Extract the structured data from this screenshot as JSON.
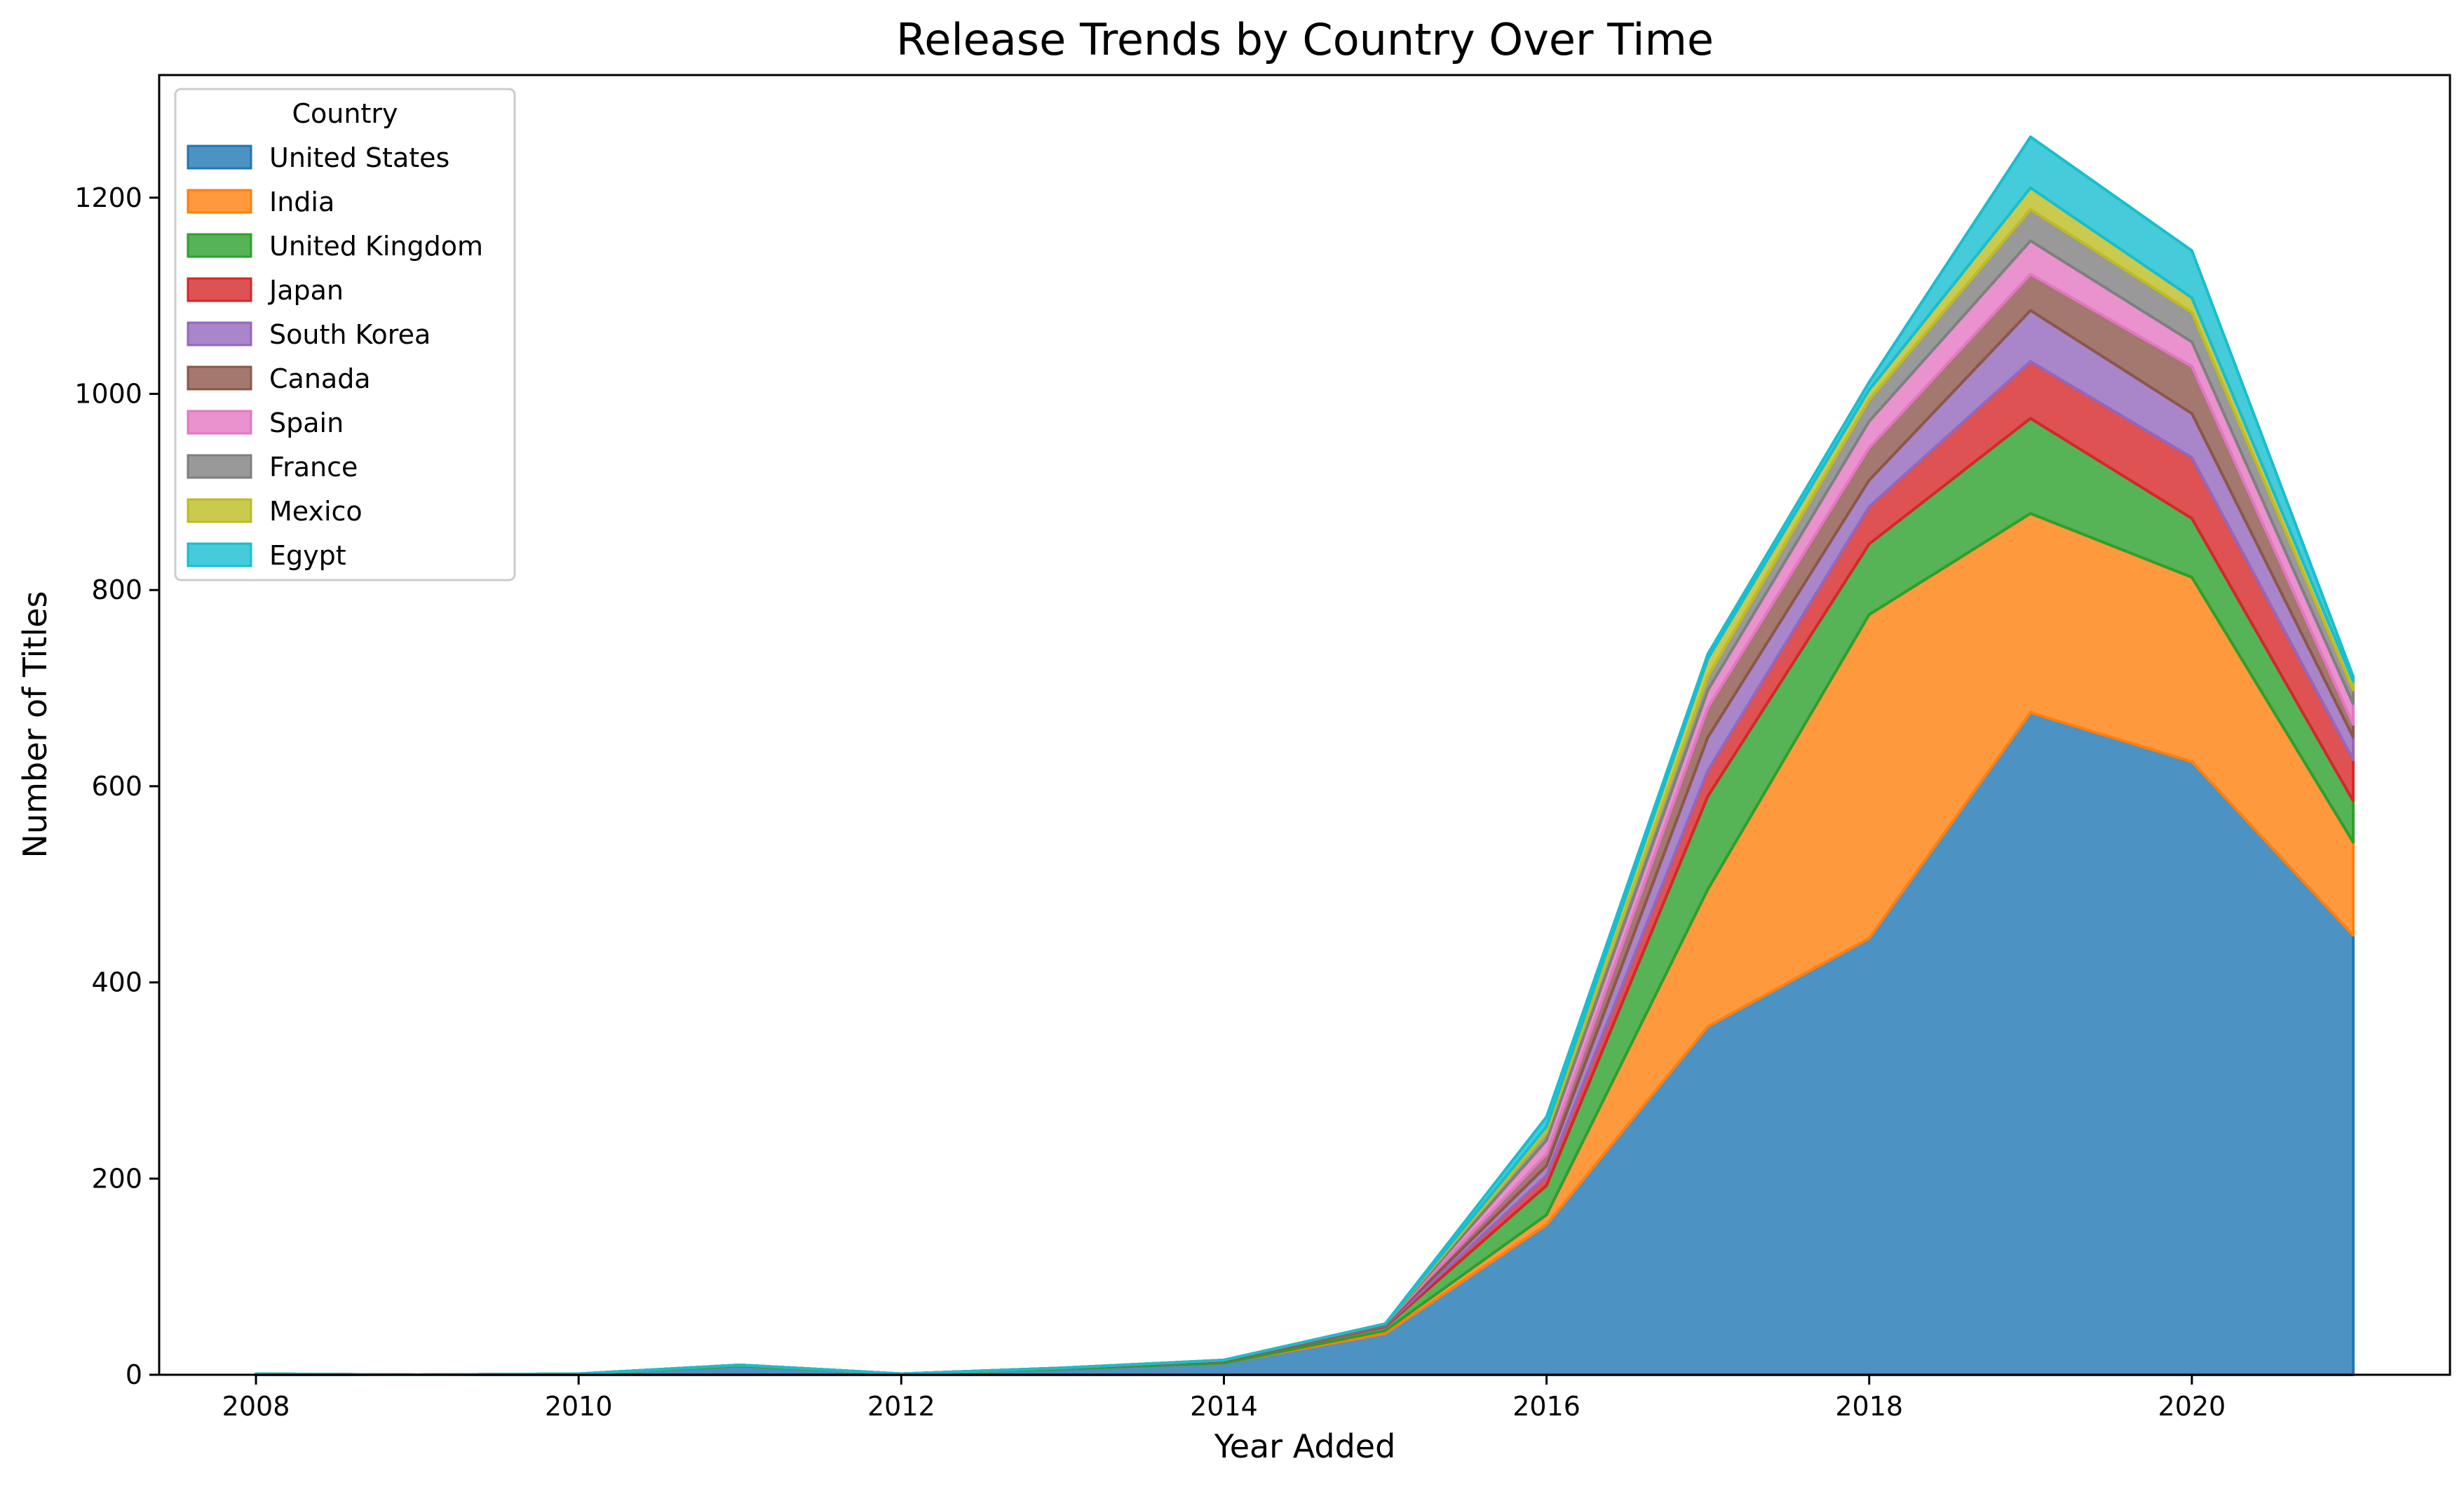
{
  "chart_data": {
    "type": "area",
    "stacked": true,
    "title": "Release Trends by Country Over Time",
    "xlabel": "Year Added",
    "ylabel": "Number of Titles",
    "xlim": [
      2007.4,
      2021.6
    ],
    "ylim": [
      0,
      1325
    ],
    "xticks": [
      2008,
      2010,
      2012,
      2014,
      2016,
      2018,
      2020
    ],
    "yticks": [
      0,
      200,
      400,
      600,
      800,
      1000,
      1200
    ],
    "grid": false,
    "legend": {
      "title": "Country",
      "placement": "top-left"
    },
    "x": [
      2008,
      2009,
      2010,
      2011,
      2012,
      2013,
      2014,
      2015,
      2016,
      2017,
      2018,
      2019,
      2020,
      2021
    ],
    "series": [
      {
        "name": "United States",
        "color": "#1f77b4",
        "values": [
          1,
          0,
          1,
          9,
          1,
          6,
          12,
          42,
          153,
          355,
          445,
          675,
          625,
          448
        ]
      },
      {
        "name": "India",
        "color": "#ff7f0e",
        "values": [
          0,
          0,
          0,
          0,
          0,
          0,
          0,
          3,
          10,
          140,
          330,
          203,
          188,
          95
        ]
      },
      {
        "name": "United Kingdom",
        "color": "#2ca02c",
        "values": [
          0,
          0,
          0,
          1,
          0,
          1,
          2,
          4,
          30,
          95,
          72,
          97,
          60,
          42
        ]
      },
      {
        "name": "Japan",
        "color": "#d62728",
        "values": [
          0,
          0,
          0,
          0,
          0,
          0,
          0,
          1,
          10,
          26,
          38,
          58,
          62,
          42
        ]
      },
      {
        "name": "South Korea",
        "color": "#9467bd",
        "values": [
          0,
          0,
          0,
          0,
          0,
          0,
          0,
          1,
          10,
          34,
          27,
          52,
          45,
          23
        ]
      },
      {
        "name": "Canada",
        "color": "#8c564b",
        "values": [
          0,
          0,
          0,
          0,
          0,
          0,
          1,
          1,
          12,
          30,
          33,
          37,
          48,
          13
        ]
      },
      {
        "name": "Spain",
        "color": "#e377c2",
        "values": [
          0,
          0,
          0,
          0,
          0,
          0,
          0,
          0,
          14,
          18,
          27,
          34,
          25,
          21
        ]
      },
      {
        "name": "France",
        "color": "#7f7f7f",
        "values": [
          0,
          0,
          0,
          0,
          0,
          0,
          0,
          0,
          8,
          14,
          22,
          32,
          30,
          14
        ]
      },
      {
        "name": "Mexico",
        "color": "#bcbd22",
        "values": [
          0,
          0,
          0,
          0,
          0,
          0,
          0,
          0,
          6,
          18,
          10,
          22,
          15,
          9
        ]
      },
      {
        "name": "Egypt",
        "color": "#17becf",
        "values": [
          0,
          0,
          0,
          0,
          0,
          0,
          0,
          0,
          10,
          5,
          8,
          52,
          48,
          5
        ]
      }
    ]
  }
}
